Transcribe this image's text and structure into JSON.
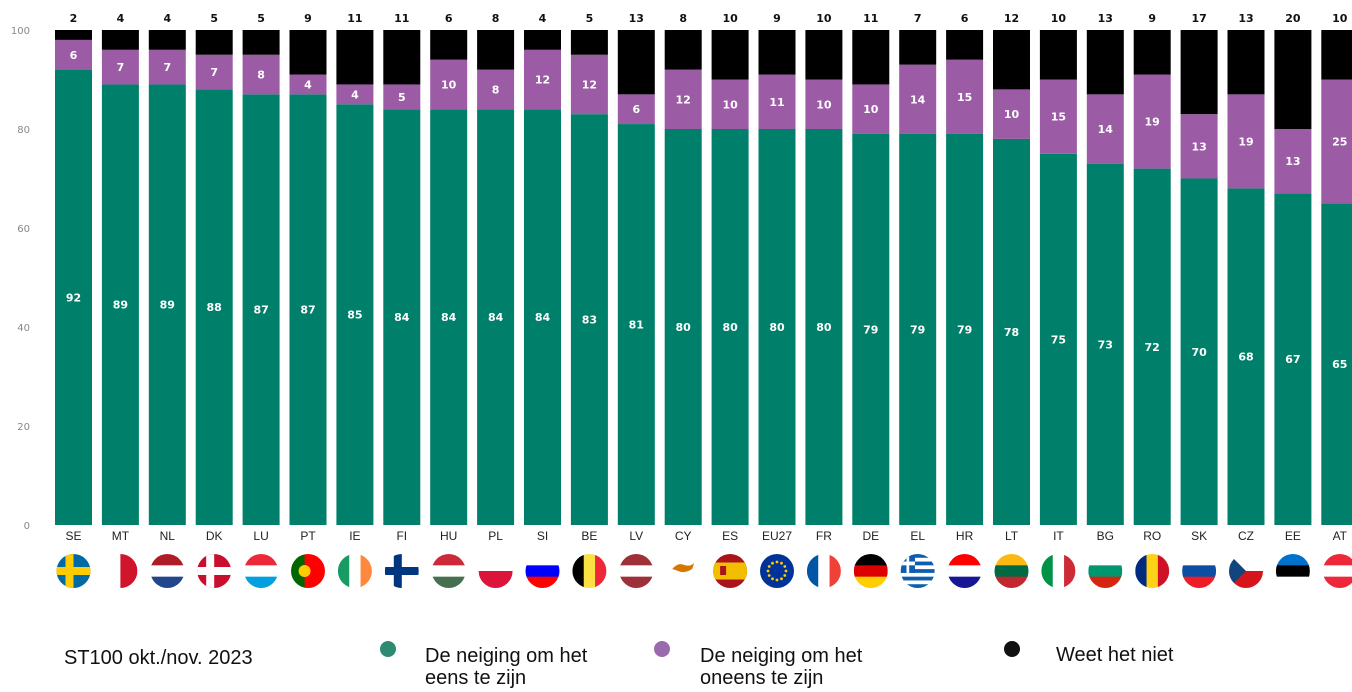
{
  "chart_data": {
    "type": "bar",
    "stacked": true,
    "ylim": [
      0,
      100
    ],
    "yticks": [
      0,
      20,
      40,
      60,
      80,
      100
    ],
    "grid": false,
    "legend_position": "bottom",
    "categories": [
      "SE",
      "MT",
      "NL",
      "DK",
      "LU",
      "PT",
      "IE",
      "FI",
      "HU",
      "PL",
      "SI",
      "BE",
      "LV",
      "CY",
      "ES",
      "EU27",
      "FR",
      "DE",
      "EL",
      "HR",
      "LT",
      "IT",
      "BG",
      "RO",
      "SK",
      "CZ",
      "EE",
      "AT"
    ],
    "series": [
      {
        "name": "De neiging om het eens te zijn",
        "color": "#00806a",
        "values": [
          92,
          89,
          89,
          88,
          87,
          87,
          85,
          84,
          84,
          84,
          84,
          83,
          81,
          80,
          80,
          80,
          80,
          79,
          79,
          79,
          78,
          75,
          73,
          72,
          70,
          68,
          67,
          65
        ]
      },
      {
        "name": "De neiging om het oneens te zijn",
        "color": "#9b5ba5",
        "values": [
          6,
          7,
          7,
          7,
          8,
          4,
          4,
          5,
          10,
          8,
          12,
          12,
          6,
          12,
          10,
          11,
          10,
          10,
          14,
          15,
          10,
          15,
          14,
          19,
          13,
          19,
          13,
          25
        ]
      },
      {
        "name": "Weet het niet",
        "color": "#000000",
        "values": [
          2,
          4,
          4,
          5,
          5,
          9,
          11,
          11,
          6,
          8,
          4,
          5,
          13,
          8,
          10,
          9,
          10,
          11,
          7,
          6,
          12,
          10,
          13,
          9,
          17,
          13,
          20,
          10
        ]
      }
    ]
  },
  "legend": {
    "source": "ST100 okt./nov. 2023",
    "agree_line1": "De neiging om het",
    "agree_line2": "eens te zijn",
    "disagree_line1": "De neiging om het",
    "disagree_line2": "oneens te zijn",
    "dontknow": "Weet het niet"
  },
  "flags": {
    "SE": {
      "type": "nordic",
      "colors": [
        "#006aa7",
        "#fecc00"
      ]
    },
    "MT": {
      "type": "v2",
      "colors": [
        "#ffffff",
        "#cf142b"
      ]
    },
    "NL": {
      "type": "h3",
      "colors": [
        "#ae1c28",
        "#ffffff",
        "#21468b"
      ]
    },
    "DK": {
      "type": "nordic",
      "colors": [
        "#c8102e",
        "#ffffff"
      ]
    },
    "LU": {
      "type": "h3",
      "colors": [
        "#ed2939",
        "#ffffff",
        "#00a1de"
      ]
    },
    "PT": {
      "type": "v2pt",
      "colors": [
        "#006600",
        "#ff0000",
        "#ffcc00"
      ]
    },
    "IE": {
      "type": "v3",
      "colors": [
        "#169b62",
        "#ffffff",
        "#ff883e"
      ]
    },
    "FI": {
      "type": "nordic",
      "colors": [
        "#ffffff",
        "#003580"
      ]
    },
    "HU": {
      "type": "h3",
      "colors": [
        "#ce2939",
        "#ffffff",
        "#477050"
      ]
    },
    "PL": {
      "type": "h2",
      "colors": [
        "#ffffff",
        "#dc143c"
      ]
    },
    "SI": {
      "type": "h3",
      "colors": [
        "#ffffff",
        "#0000ff",
        "#ff0000"
      ]
    },
    "BE": {
      "type": "v3",
      "colors": [
        "#000000",
        "#fae042",
        "#ed2939"
      ]
    },
    "LV": {
      "type": "h3",
      "colors": [
        "#9e3039",
        "#ffffff",
        "#9e3039"
      ]
    },
    "CY": {
      "type": "cy",
      "colors": [
        "#ffffff",
        "#d57800"
      ]
    },
    "ES": {
      "type": "es",
      "colors": [
        "#aa151b",
        "#f1bf00",
        "#aa151b"
      ]
    },
    "EU27": {
      "type": "eu",
      "colors": [
        "#003399",
        "#ffcc00"
      ]
    },
    "FR": {
      "type": "v3",
      "colors": [
        "#0055a4",
        "#ffffff",
        "#ef4135"
      ]
    },
    "DE": {
      "type": "h3",
      "colors": [
        "#000000",
        "#dd0000",
        "#ffce00"
      ]
    },
    "EL": {
      "type": "gr",
      "colors": [
        "#0d5eaf",
        "#ffffff"
      ]
    },
    "HR": {
      "type": "h3",
      "colors": [
        "#ff0000",
        "#ffffff",
        "#171796"
      ]
    },
    "LT": {
      "type": "h3",
      "colors": [
        "#fdb913",
        "#006a44",
        "#c1272d"
      ]
    },
    "IT": {
      "type": "v3",
      "colors": [
        "#009246",
        "#ffffff",
        "#ce2b37"
      ]
    },
    "BG": {
      "type": "h3",
      "colors": [
        "#ffffff",
        "#00966e",
        "#d62612"
      ]
    },
    "RO": {
      "type": "v3",
      "colors": [
        "#002b7f",
        "#fcd116",
        "#ce1126"
      ]
    },
    "SK": {
      "type": "h3",
      "colors": [
        "#ffffff",
        "#0b4ea2",
        "#ee1c25"
      ]
    },
    "CZ": {
      "type": "cz",
      "colors": [
        "#ffffff",
        "#d7141a",
        "#11457e"
      ]
    },
    "EE": {
      "type": "h3",
      "colors": [
        "#0072ce",
        "#000000",
        "#ffffff"
      ]
    },
    "AT": {
      "type": "h3",
      "colors": [
        "#ed2939",
        "#ffffff",
        "#ed2939"
      ]
    }
  }
}
